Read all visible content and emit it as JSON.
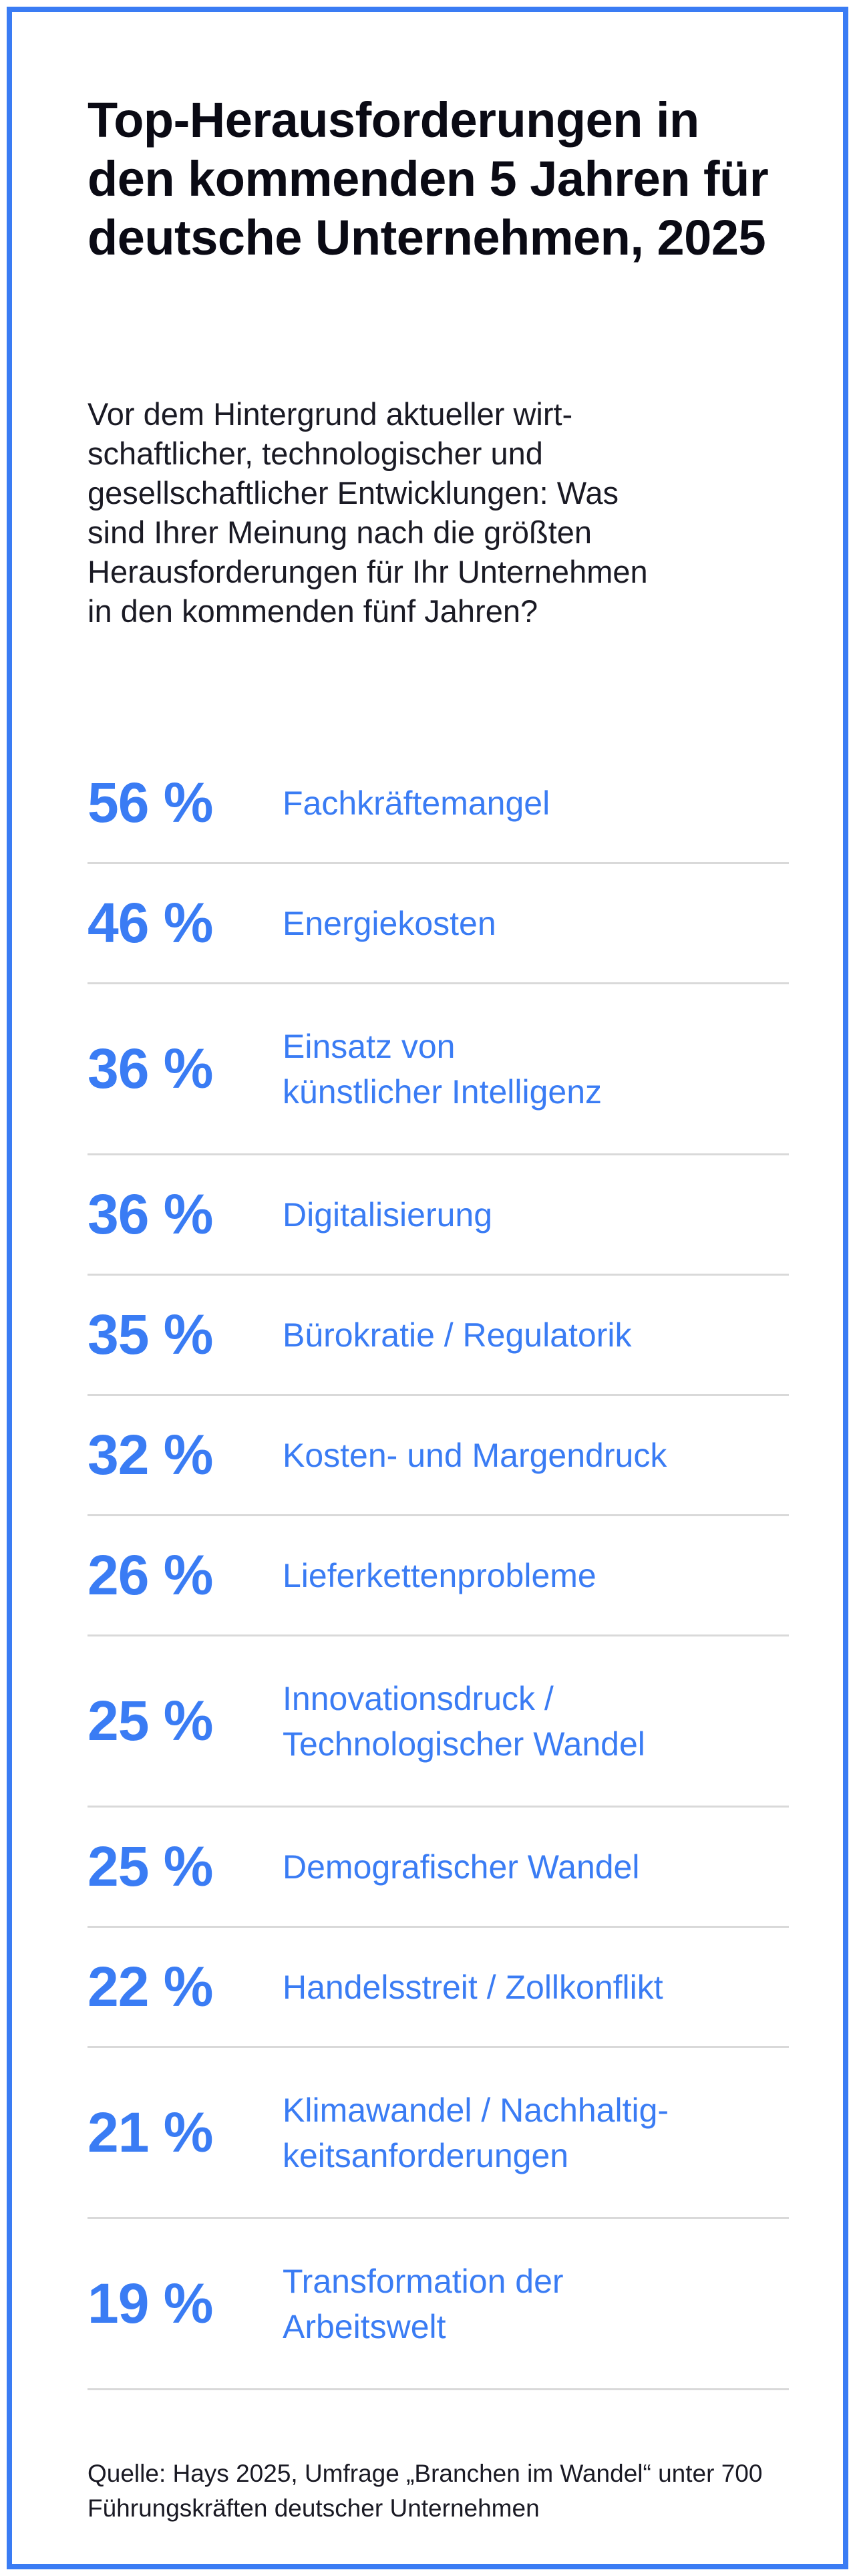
{
  "title": "Top-Herausforderungen in den kommenden 5 Jahren für deutsche Unternehmen, 2025",
  "subtitle": "Vor dem Hintergrund aktueller wirt-\nschaftlicher, technologischer und\ngesellschaftlicher Entwicklungen: Was\nsind Ihrer Meinung nach die größten\nHerausforderungen für Ihr Unternehmen\nin den kommenden fünf Jahren?",
  "source": "Quelle: Hays 2025, Umfrage „Branchen im Wandel“ unter 700 Führungskräften deutscher Unternehmen",
  "colors": {
    "accent": "#3a7cf4",
    "text": "#0a0a14",
    "divider": "#d9d9d9"
  },
  "chart_data": {
    "type": "table",
    "unit": "%",
    "rows": [
      {
        "value": 56,
        "value_label": "56 %",
        "label": "Fachkräftemangel"
      },
      {
        "value": 46,
        "value_label": "46 %",
        "label": "Energiekosten"
      },
      {
        "value": 36,
        "value_label": "36 %",
        "label": "Einsatz von\nkünstlicher Intelligenz"
      },
      {
        "value": 36,
        "value_label": "36 %",
        "label": "Digitalisierung"
      },
      {
        "value": 35,
        "value_label": "35 %",
        "label": "Bürokratie / Regulatorik"
      },
      {
        "value": 32,
        "value_label": "32 %",
        "label": "Kosten- und Margendruck"
      },
      {
        "value": 26,
        "value_label": "26 %",
        "label": "Lieferkettenprobleme"
      },
      {
        "value": 25,
        "value_label": "25 %",
        "label": "Innovationsdruck /\nTechnologischer Wandel"
      },
      {
        "value": 25,
        "value_label": "25 %",
        "label": "Demografischer Wandel"
      },
      {
        "value": 22,
        "value_label": "22 %",
        "label": "Handelsstreit / Zollkonflikt"
      },
      {
        "value": 21,
        "value_label": "21 %",
        "label": "Klimawandel / Nachhaltig-\nkeitsanforderungen"
      },
      {
        "value": 19,
        "value_label": "19 %",
        "label": "Transformation der\nArbeitswelt"
      }
    ]
  }
}
